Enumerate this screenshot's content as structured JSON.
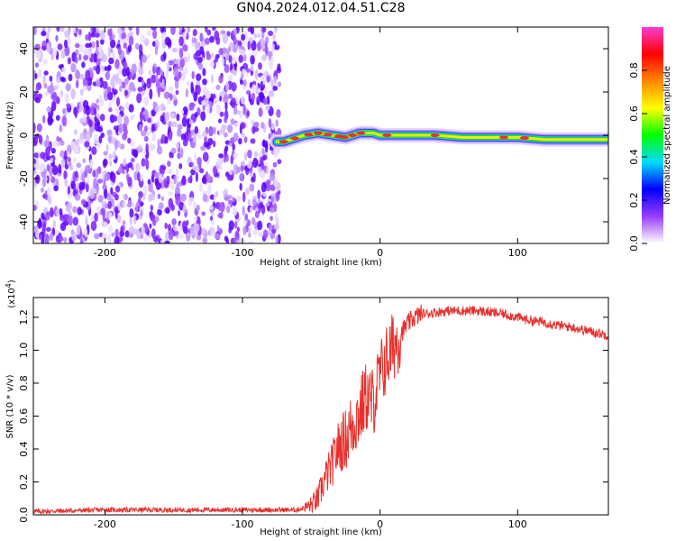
{
  "title": "GN04.2024.012.04.51.C28",
  "chart_data": [
    {
      "type": "heatmap",
      "xlabel": "Height of straight line (km)",
      "ylabel": "Frequency (Hz)",
      "xlim": [
        -252,
        166
      ],
      "ylim": [
        -50,
        50
      ],
      "xticks": [
        -200,
        -100,
        0,
        100
      ],
      "yticks": [
        -40,
        -20,
        0,
        20,
        40
      ],
      "noise_region_x": [
        -252,
        -73
      ],
      "signal_trace": {
        "x": [
          -75,
          -70,
          -65,
          -55,
          -45,
          -35,
          -25,
          -15,
          -5,
          0,
          20,
          40,
          60,
          80,
          100,
          120,
          140,
          166
        ],
        "y": [
          -3,
          -3,
          -2,
          0,
          1,
          0,
          -1,
          1,
          1,
          0,
          0,
          0,
          -1,
          -1,
          -1,
          -2,
          -2,
          -2
        ]
      },
      "colorbar": {
        "label": "Normalized spectral amplitude",
        "range": [
          0,
          1
        ],
        "ticks": [
          0.0,
          0.2,
          0.4,
          0.6,
          0.8
        ],
        "colors": [
          "#ffffff",
          "#9a3cff",
          "#0000ff",
          "#00dcff",
          "#00ff00",
          "#ffff00",
          "#ff8800",
          "#ff0000",
          "#ff3cd2"
        ]
      }
    },
    {
      "type": "line",
      "xlabel": "Height of straight line (km)",
      "ylabel": "SNR (10 * v/v)",
      "scale_label_base": "(x10",
      "scale_label_exp": "4",
      "scale_label_close": ")",
      "xlim": [
        -252,
        166
      ],
      "ylim": [
        0,
        1.32
      ],
      "xticks": [
        -200,
        -100,
        0,
        100
      ],
      "yticks": [
        "0.0",
        "0.2",
        "0.4",
        "0.6",
        "0.8",
        "1.0",
        "1.2"
      ],
      "color": "#e8302c",
      "series": [
        {
          "x": [
            -252,
            -200,
            -150,
            -100,
            -60,
            -50,
            -45,
            -40,
            -35,
            -30,
            -25,
            -20,
            -15,
            -10,
            -5,
            0,
            5,
            10,
            15,
            20,
            25,
            30,
            40,
            50,
            60,
            70,
            80,
            90,
            100,
            110,
            120,
            130,
            140,
            150,
            166
          ],
          "y": [
            0.02,
            0.03,
            0.03,
            0.03,
            0.03,
            0.06,
            0.1,
            0.22,
            0.3,
            0.42,
            0.46,
            0.55,
            0.62,
            0.72,
            0.68,
            0.85,
            0.95,
            1.03,
            1.1,
            1.16,
            1.2,
            1.22,
            1.23,
            1.24,
            1.24,
            1.24,
            1.23,
            1.22,
            1.2,
            1.18,
            1.17,
            1.15,
            1.14,
            1.12,
            1.09
          ]
        }
      ]
    }
  ]
}
